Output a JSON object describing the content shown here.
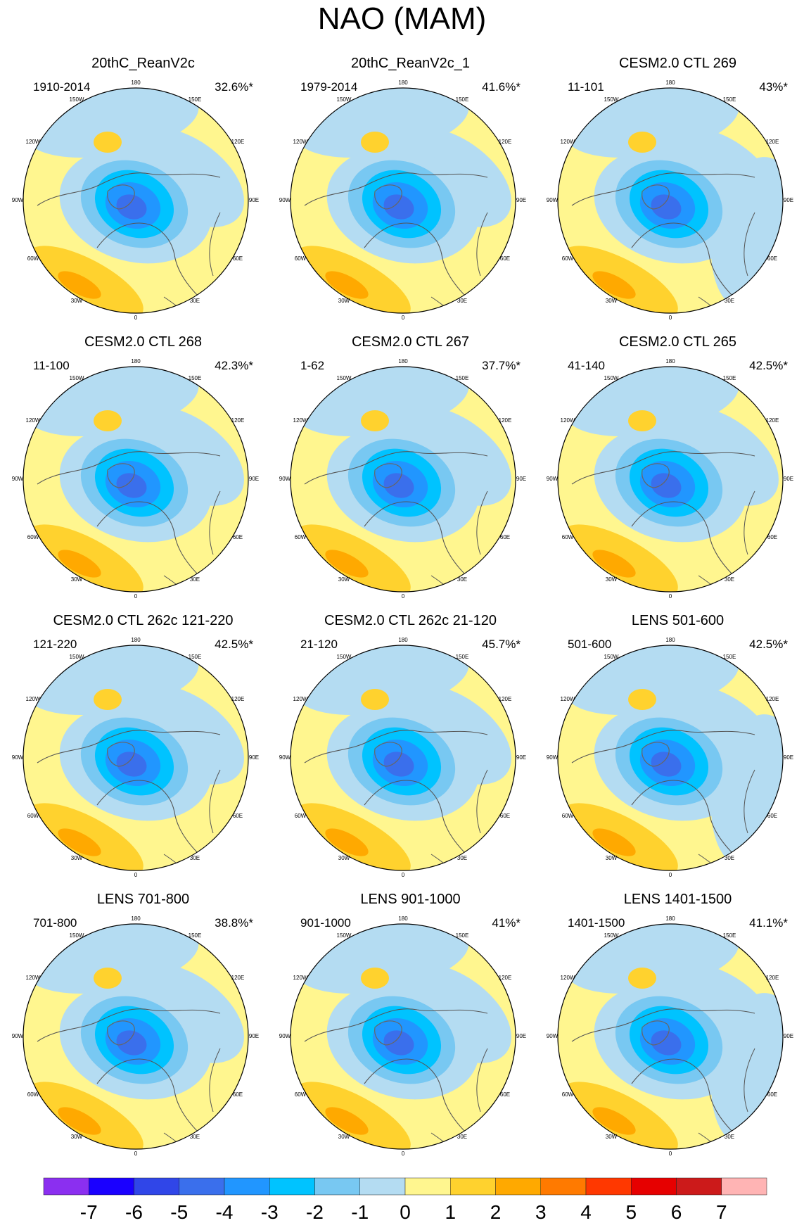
{
  "figure": {
    "title": "NAO (MAM)"
  },
  "chart_data": {
    "type": "heatmap",
    "title": "NAO (MAM)",
    "projection": "north polar stereographic",
    "longitude_labels": [
      "180",
      "150E",
      "120E",
      "90E",
      "60E",
      "30E",
      "0",
      "30W",
      "60W",
      "90W",
      "120W",
      "150W"
    ],
    "colorbar": {
      "labels": [
        "-7",
        "-6",
        "-5",
        "-4",
        "-3",
        "-2",
        "-1",
        "0",
        "1",
        "2",
        "3",
        "4",
        "5",
        "6",
        "7"
      ],
      "colors": [
        "#8b2ff0",
        "#1a00ff",
        "#3046e8",
        "#3a6fec",
        "#2196ff",
        "#00c3ff",
        "#78c8f2",
        "#b4dcf2",
        "#fff68f",
        "#ffd22e",
        "#ffa900",
        "#ff7a00",
        "#ff3800",
        "#e60000",
        "#cc1a1a",
        "#ffb4b4"
      ]
    },
    "panels": [
      {
        "title": "20thC_ReanV2c",
        "period": "1910-2014",
        "variance": "32.6%*"
      },
      {
        "title": "20thC_ReanV2c_1",
        "period": "1979-2014",
        "variance": "41.6%*"
      },
      {
        "title": "CESM2.0 CTL 269",
        "period": "11-101",
        "variance": "43%*"
      },
      {
        "title": "CESM2.0 CTL 268",
        "period": "11-100",
        "variance": "42.3%*"
      },
      {
        "title": "CESM2.0 CTL 267",
        "period": "1-62",
        "variance": "37.7%*"
      },
      {
        "title": "CESM2.0 CTL 265",
        "period": "41-140",
        "variance": "42.5%*"
      },
      {
        "title": "CESM2.0 CTL 262c 121-220",
        "period": "121-220",
        "variance": "42.5%*"
      },
      {
        "title": "CESM2.0 CTL 262c 21-120",
        "period": "21-120",
        "variance": "45.7%*"
      },
      {
        "title": "LENS 501-600",
        "period": "501-600",
        "variance": "42.5%*"
      },
      {
        "title": "LENS 701-800",
        "period": "701-800",
        "variance": "38.8%*"
      },
      {
        "title": "LENS 901-1000",
        "period": "901-1000",
        "variance": "41%*"
      },
      {
        "title": "LENS 1401-1500",
        "period": "1401-1500",
        "variance": "41.1%*"
      }
    ]
  }
}
